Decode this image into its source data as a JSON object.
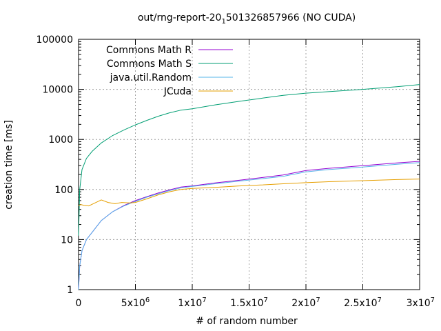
{
  "chart_data": {
    "type": "line",
    "title": {
      "prefix": "out/rng-report-20",
      "subscript": "1",
      "suffix": "501326857966 (NO CUDA)"
    },
    "xlabel": "# of random number",
    "ylabel": "creation time [ms]",
    "xlim": [
      0,
      30000000
    ],
    "ylim": [
      1,
      100000
    ],
    "yscale": "log",
    "grid": true,
    "legend_position": "top-left",
    "x_ticks": [
      {
        "value": 0,
        "mant": "0",
        "exp": ""
      },
      {
        "value": 5000000,
        "mant": "5x10",
        "exp": "6"
      },
      {
        "value": 10000000,
        "mant": "1x10",
        "exp": "7"
      },
      {
        "value": 15000000,
        "mant": "1.5x10",
        "exp": "7"
      },
      {
        "value": 20000000,
        "mant": "2x10",
        "exp": "7"
      },
      {
        "value": 25000000,
        "mant": "2.5x10",
        "exp": "7"
      },
      {
        "value": 30000000,
        "mant": "3x10",
        "exp": "7"
      }
    ],
    "y_ticks": [
      {
        "value": 1,
        "label": "1"
      },
      {
        "value": 10,
        "label": "10"
      },
      {
        "value": 100,
        "label": "100"
      },
      {
        "value": 1000,
        "label": "1000"
      },
      {
        "value": 10000,
        "label": "10000"
      },
      {
        "value": 100000,
        "label": "100000"
      }
    ],
    "series": [
      {
        "name": "Commons Math R",
        "color": "#9400d3",
        "x": [
          0,
          100000,
          300000,
          700000,
          1200000,
          2000000,
          3000000,
          4000000,
          5000000,
          6000000,
          7000000,
          8000000,
          9000000,
          10000000,
          12000000,
          14000000,
          16000000,
          18000000,
          20000000,
          22000000,
          25000000,
          28000000,
          30000000
        ],
        "y": [
          1,
          3,
          6,
          10,
          14,
          24,
          36,
          48,
          60,
          72,
          85,
          98,
          112,
          118,
          135,
          152,
          172,
          195,
          240,
          265,
          300,
          340,
          365
        ]
      },
      {
        "name": "Commons Math S",
        "color": "#009e73",
        "x": [
          0,
          100000,
          300000,
          700000,
          1200000,
          2000000,
          3000000,
          4000000,
          5000000,
          6000000,
          7000000,
          8000000,
          9000000,
          10000000,
          12000000,
          14000000,
          16000000,
          18000000,
          20000000,
          22000000,
          25000000,
          28000000,
          30000000
        ],
        "y": [
          12,
          100,
          250,
          420,
          580,
          850,
          1200,
          1550,
          1950,
          2400,
          2900,
          3400,
          3850,
          4100,
          4900,
          5700,
          6600,
          7600,
          8400,
          9000,
          10000,
          11300,
          12500
        ]
      },
      {
        "name": "java.util.Random",
        "color": "#56b4e9",
        "x": [
          0,
          100000,
          300000,
          700000,
          1200000,
          2000000,
          3000000,
          4000000,
          5000000,
          6000000,
          7000000,
          8000000,
          9000000,
          10000000,
          12000000,
          14000000,
          16000000,
          18000000,
          20000000,
          22000000,
          25000000,
          28000000,
          30000000
        ],
        "y": [
          1,
          3,
          6,
          10,
          14,
          24,
          36,
          47,
          58,
          70,
          82,
          95,
          108,
          115,
          130,
          146,
          163,
          183,
          225,
          250,
          280,
          318,
          345
        ]
      },
      {
        "name": "JCuda",
        "color": "#e69f00",
        "x": [
          0,
          200000,
          500000,
          900000,
          1300000,
          2000000,
          2600000,
          3200000,
          3800000,
          4500000,
          5000000,
          6000000,
          7000000,
          8000000,
          9000000,
          10000000,
          12000000,
          14000000,
          16000000,
          18000000,
          20000000,
          22000000,
          25000000,
          28000000,
          30000000
        ],
        "y": [
          48,
          50,
          48,
          47,
          52,
          62,
          55,
          52,
          55,
          54,
          55,
          65,
          78,
          90,
          100,
          105,
          110,
          117,
          123,
          130,
          137,
          143,
          150,
          158,
          162
        ]
      }
    ]
  }
}
